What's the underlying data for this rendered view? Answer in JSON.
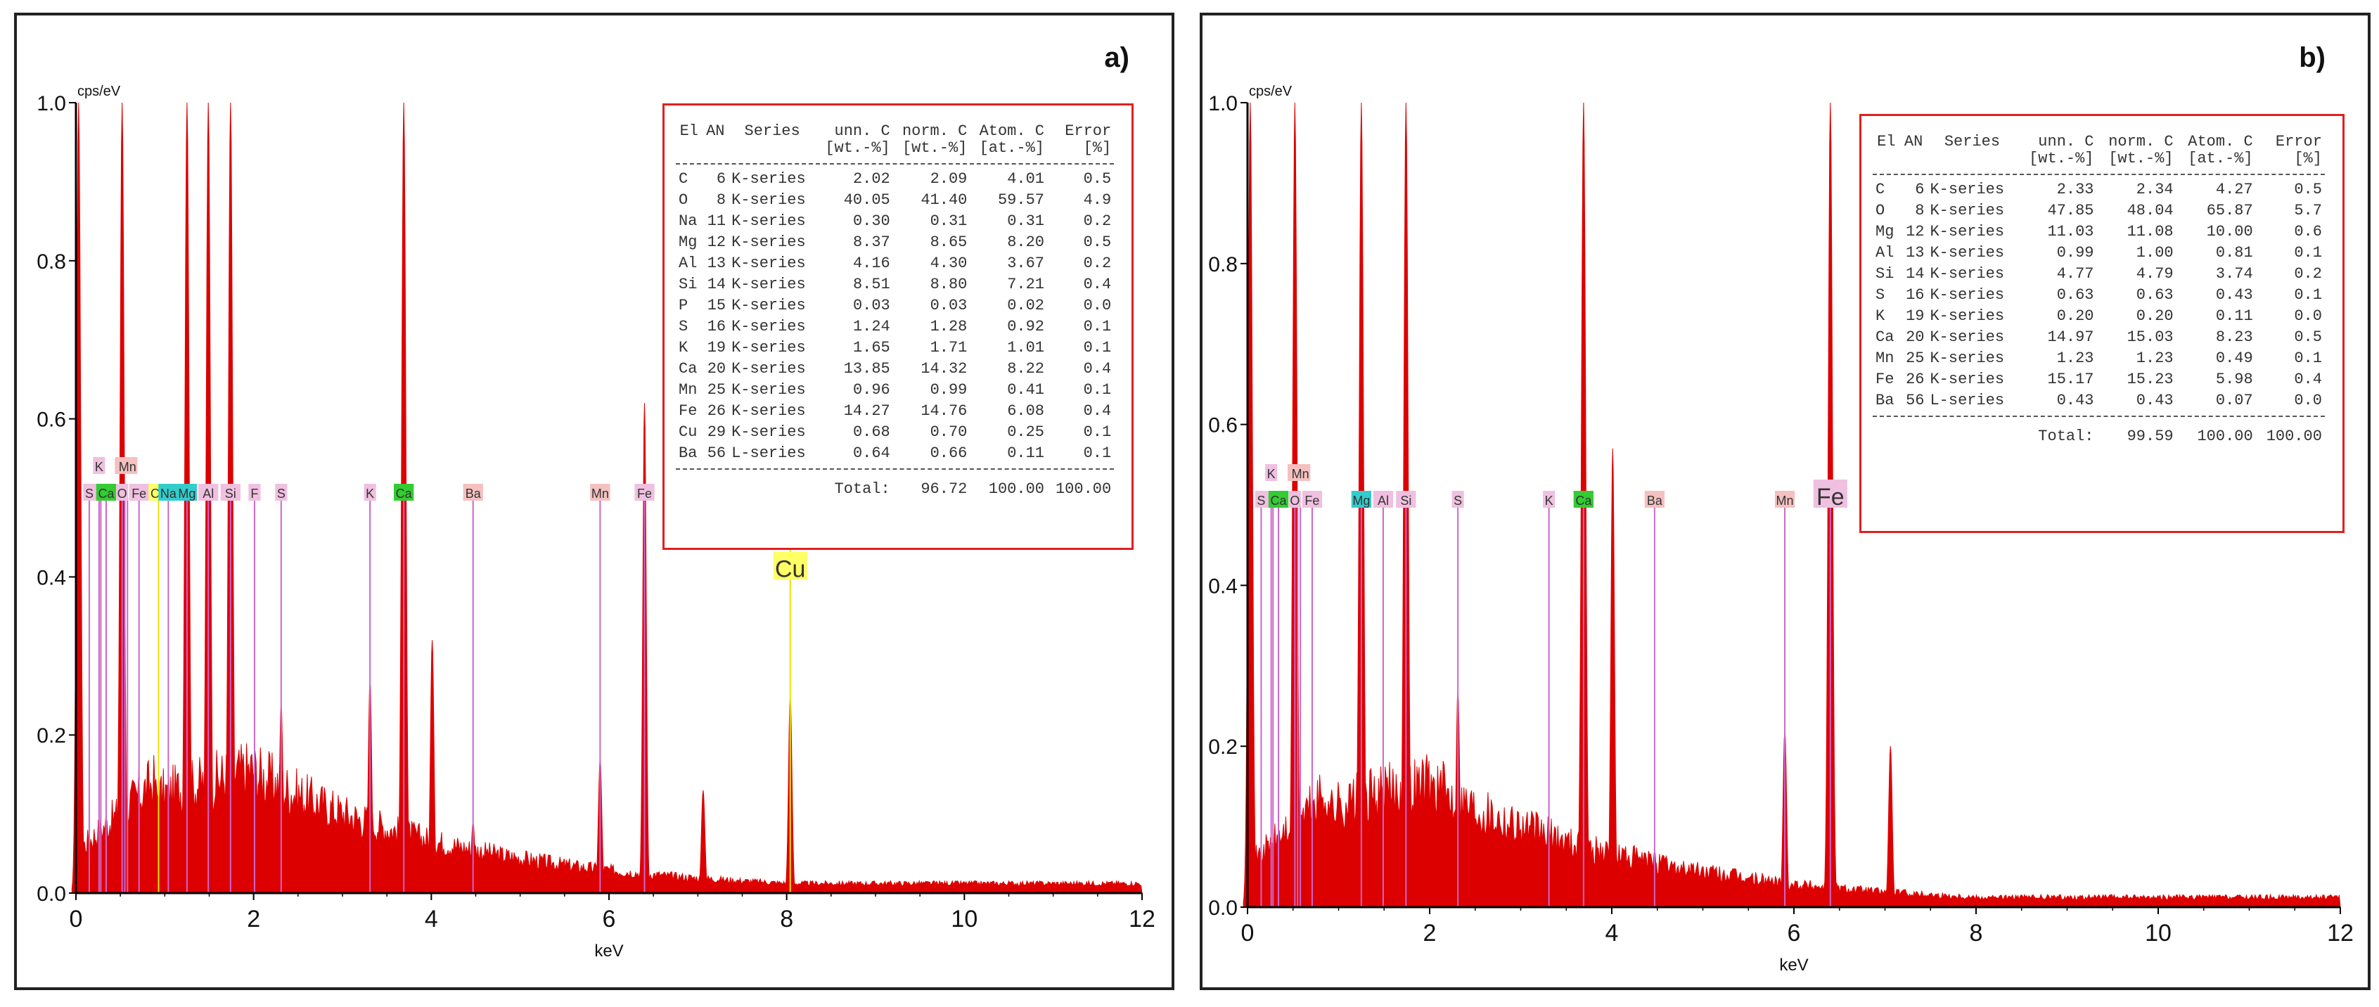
{
  "chart_data": [
    {
      "panel": "a)",
      "type": "bar",
      "ylabel": "cps/eV",
      "xlabel": "keV",
      "xlim": [
        0,
        12
      ],
      "ylim": [
        0,
        1.0
      ],
      "xticks": [
        0,
        2,
        4,
        6,
        8,
        10,
        12
      ],
      "yticks": [
        "0.0",
        "0.2",
        "0.4",
        "0.6",
        "0.8",
        "1.0"
      ],
      "peaks": [
        {
          "x": 0.03,
          "y": 1.0
        },
        {
          "x": 0.52,
          "y": 1.0
        },
        {
          "x": 1.25,
          "y": 1.0
        },
        {
          "x": 1.49,
          "y": 1.0
        },
        {
          "x": 1.74,
          "y": 1.0
        },
        {
          "x": 2.31,
          "y": 0.24
        },
        {
          "x": 3.31,
          "y": 0.27
        },
        {
          "x": 3.69,
          "y": 1.0
        },
        {
          "x": 4.01,
          "y": 0.32
        },
        {
          "x": 4.47,
          "y": 0.09
        },
        {
          "x": 5.9,
          "y": 0.17
        },
        {
          "x": 6.4,
          "y": 0.62
        },
        {
          "x": 7.06,
          "y": 0.13
        },
        {
          "x": 8.04,
          "y": 0.25
        }
      ],
      "element_markers": [
        {
          "label": "S",
          "x": 0.15,
          "color": "#f0c0e0"
        },
        {
          "label": "K",
          "x": 0.26,
          "color": "#f0c0e0"
        },
        {
          "label": "C",
          "x": 0.28,
          "color": "#f0c0e0"
        },
        {
          "label": "Ca",
          "x": 0.34,
          "color": "#33cc33"
        },
        {
          "label": "Ba",
          "x": 0.55,
          "color": "#f5c0c0"
        },
        {
          "label": "Mn",
          "x": 0.58,
          "color": "#f5c0c0"
        },
        {
          "label": "O",
          "x": 0.52,
          "color": "#f0c0e0"
        },
        {
          "label": "Fe",
          "x": 0.71,
          "color": "#f0c0e0"
        },
        {
          "label": "Cu",
          "x": 0.93,
          "color": "#ffff66"
        },
        {
          "label": "Na",
          "x": 1.04,
          "color": "#33cccc"
        },
        {
          "label": "Mg",
          "x": 1.25,
          "color": "#33cccc"
        },
        {
          "label": "Al",
          "x": 1.49,
          "color": "#f0c0e0"
        },
        {
          "label": "Si",
          "x": 1.74,
          "color": "#f0c0e0"
        },
        {
          "label": "F",
          "x": 2.01,
          "color": "#f0c0e0"
        },
        {
          "label": "S",
          "x": 2.31,
          "color": "#f0c0e0"
        },
        {
          "label": "K",
          "x": 3.31,
          "color": "#f0c0e0"
        },
        {
          "label": "Ca",
          "x": 3.69,
          "color": "#33cc33"
        },
        {
          "label": "Ba",
          "x": 4.47,
          "color": "#f5c0c0"
        },
        {
          "label": "Mn",
          "x": 5.9,
          "color": "#f5c0c0"
        },
        {
          "label": "Fe",
          "x": 6.4,
          "color": "#f0c0e0"
        },
        {
          "label": "Cu",
          "x": 8.04,
          "color": "#ffff66"
        }
      ],
      "table": {
        "headers": [
          "El",
          "AN",
          "Series",
          "unn. C",
          "norm. C",
          "Atom. C",
          "Error"
        ],
        "subheaders": [
          "",
          "",
          "",
          "[wt.-%]",
          "[wt.-%]",
          "[at.-%]",
          "[%]"
        ],
        "rows": [
          [
            "C",
            "6",
            "K-series",
            "2.02",
            "2.09",
            "4.01",
            "0.5"
          ],
          [
            "O",
            "8",
            "K-series",
            "40.05",
            "41.40",
            "59.57",
            "4.9"
          ],
          [
            "Na",
            "11",
            "K-series",
            "0.30",
            "0.31",
            "0.31",
            "0.2"
          ],
          [
            "Mg",
            "12",
            "K-series",
            "8.37",
            "8.65",
            "8.20",
            "0.5"
          ],
          [
            "Al",
            "13",
            "K-series",
            "4.16",
            "4.30",
            "3.67",
            "0.2"
          ],
          [
            "Si",
            "14",
            "K-series",
            "8.51",
            "8.80",
            "7.21",
            "0.4"
          ],
          [
            "P",
            "15",
            "K-series",
            "0.03",
            "0.03",
            "0.02",
            "0.0"
          ],
          [
            "S",
            "16",
            "K-series",
            "1.24",
            "1.28",
            "0.92",
            "0.1"
          ],
          [
            "K",
            "19",
            "K-series",
            "1.65",
            "1.71",
            "1.01",
            "0.1"
          ],
          [
            "Ca",
            "20",
            "K-series",
            "13.85",
            "14.32",
            "8.22",
            "0.4"
          ],
          [
            "Mn",
            "25",
            "K-series",
            "0.96",
            "0.99",
            "0.41",
            "0.1"
          ],
          [
            "Fe",
            "26",
            "K-series",
            "14.27",
            "14.76",
            "6.08",
            "0.4"
          ],
          [
            "Cu",
            "29",
            "K-series",
            "0.68",
            "0.70",
            "0.25",
            "0.1"
          ],
          [
            "Ba",
            "56",
            "L-series",
            "0.64",
            "0.66",
            "0.11",
            "0.1"
          ]
        ],
        "total_label": "Total:",
        "total": [
          "96.72",
          "100.00",
          "100.00"
        ]
      }
    },
    {
      "panel": "b)",
      "type": "bar",
      "ylabel": "cps/eV",
      "xlabel": "keV",
      "xlim": [
        0,
        12
      ],
      "ylim": [
        0,
        1.0
      ],
      "xticks": [
        0,
        2,
        4,
        6,
        8,
        10,
        12
      ],
      "yticks": [
        "0.0",
        "0.2",
        "0.4",
        "0.6",
        "0.8",
        "1.0"
      ],
      "peaks": [
        {
          "x": 0.03,
          "y": 1.0
        },
        {
          "x": 0.52,
          "y": 1.0
        },
        {
          "x": 1.25,
          "y": 1.0
        },
        {
          "x": 1.74,
          "y": 1.0
        },
        {
          "x": 2.31,
          "y": 0.27
        },
        {
          "x": 3.69,
          "y": 1.0
        },
        {
          "x": 4.01,
          "y": 0.57
        },
        {
          "x": 4.47,
          "y": 0.07
        },
        {
          "x": 5.9,
          "y": 0.22
        },
        {
          "x": 6.4,
          "y": 1.0
        },
        {
          "x": 7.06,
          "y": 0.2
        }
      ],
      "element_markers": [
        {
          "label": "S",
          "x": 0.15,
          "color": "#f0c0e0"
        },
        {
          "label": "K",
          "x": 0.26,
          "color": "#f0c0e0"
        },
        {
          "label": "C",
          "x": 0.28,
          "color": "#f0c0e0"
        },
        {
          "label": "Ca",
          "x": 0.34,
          "color": "#33cc33"
        },
        {
          "label": "Ba",
          "x": 0.55,
          "color": "#f5c0c0"
        },
        {
          "label": "Mn",
          "x": 0.58,
          "color": "#f5c0c0"
        },
        {
          "label": "O",
          "x": 0.52,
          "color": "#f0c0e0"
        },
        {
          "label": "Fe",
          "x": 0.71,
          "color": "#f0c0e0"
        },
        {
          "label": "Mg",
          "x": 1.25,
          "color": "#33cccc"
        },
        {
          "label": "Al",
          "x": 1.49,
          "color": "#f0c0e0"
        },
        {
          "label": "Si",
          "x": 1.74,
          "color": "#f0c0e0"
        },
        {
          "label": "S",
          "x": 2.31,
          "color": "#f0c0e0"
        },
        {
          "label": "K",
          "x": 3.31,
          "color": "#f0c0e0"
        },
        {
          "label": "Ca",
          "x": 3.69,
          "color": "#33cc33"
        },
        {
          "label": "Ba",
          "x": 4.47,
          "color": "#f5c0c0"
        },
        {
          "label": "Mn",
          "x": 5.9,
          "color": "#f5c0c0"
        },
        {
          "label": "Fe",
          "x": 6.4,
          "color": "#f0c0e0"
        }
      ],
      "table": {
        "headers": [
          "El",
          "AN",
          "Series",
          "unn. C",
          "norm. C",
          "Atom. C",
          "Error"
        ],
        "subheaders": [
          "",
          "",
          "",
          "[wt.-%]",
          "[wt.-%]",
          "[at.-%]",
          "[%]"
        ],
        "rows": [
          [
            "C",
            "6",
            "K-series",
            "2.33",
            "2.34",
            "4.27",
            "0.5"
          ],
          [
            "O",
            "8",
            "K-series",
            "47.85",
            "48.04",
            "65.87",
            "5.7"
          ],
          [
            "Mg",
            "12",
            "K-series",
            "11.03",
            "11.08",
            "10.00",
            "0.6"
          ],
          [
            "Al",
            "13",
            "K-series",
            "0.99",
            "1.00",
            "0.81",
            "0.1"
          ],
          [
            "Si",
            "14",
            "K-series",
            "4.77",
            "4.79",
            "3.74",
            "0.2"
          ],
          [
            "S",
            "16",
            "K-series",
            "0.63",
            "0.63",
            "0.43",
            "0.1"
          ],
          [
            "K",
            "19",
            "K-series",
            "0.20",
            "0.20",
            "0.11",
            "0.0"
          ],
          [
            "Ca",
            "20",
            "K-series",
            "14.97",
            "15.03",
            "8.23",
            "0.5"
          ],
          [
            "Mn",
            "25",
            "K-series",
            "1.23",
            "1.23",
            "0.49",
            "0.1"
          ],
          [
            "Fe",
            "26",
            "K-series",
            "15.17",
            "15.23",
            "5.98",
            "0.4"
          ],
          [
            "Ba",
            "56",
            "L-series",
            "0.43",
            "0.43",
            "0.07",
            "0.0"
          ]
        ],
        "total_label": "Total:",
        "total": [
          "99.59",
          "100.00",
          "100.00"
        ]
      }
    }
  ],
  "colors": {
    "spectrum": "#dd0000",
    "frame": "#222222",
    "table_border": "#e02020"
  }
}
